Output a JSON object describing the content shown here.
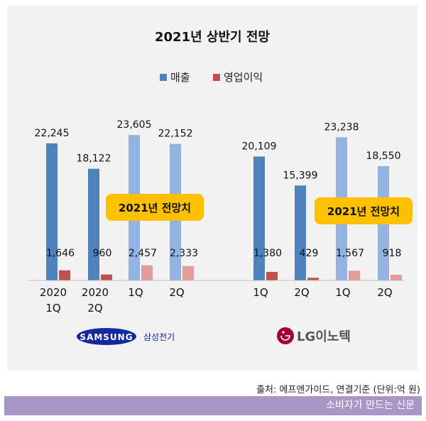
{
  "page": {
    "source": "출처: 에프엔가이드, 연결기준 (단위:억 원)",
    "footer": "소비자가 만드는 신문"
  },
  "colors": {
    "sales_actual": "#4f81bd",
    "sales_forecast": "#95b3e2",
    "op_actual": "#c0504d",
    "op_forecast": "#e39b99",
    "callout": "#ffc000",
    "samsung_blue": "#1428a0",
    "lg_red": "#a50034"
  },
  "chart_data": {
    "type": "bar",
    "title": "2021년 상반기 전망",
    "legend": [
      "매출",
      "영업이익"
    ],
    "series_names": [
      "매출",
      "영업이익"
    ],
    "ylim": [
      0,
      25000
    ],
    "groups": [
      {
        "company": "삼성전기",
        "logo_text": "SAMSUNG",
        "callout": "2021년 전망치",
        "categories": [
          {
            "label": [
              "2020",
              "1Q"
            ],
            "sales": 22245,
            "op": 1646,
            "forecast": false,
            "sales_label": "22,245",
            "op_label": "1,646"
          },
          {
            "label": [
              "2020",
              "2Q"
            ],
            "sales": 18122,
            "op": 960,
            "forecast": false,
            "sales_label": "18,122",
            "op_label": "960"
          },
          {
            "label": [
              "1Q"
            ],
            "sales": 23605,
            "op": 2457,
            "forecast": true,
            "sales_label": "23,605",
            "op_label": "2,457"
          },
          {
            "label": [
              "2Q"
            ],
            "sales": 22152,
            "op": 2333,
            "forecast": true,
            "sales_label": "22,152",
            "op_label": "2,333"
          }
        ]
      },
      {
        "company": "LG이노텍",
        "logo_text": "LG",
        "callout": "2021년 전망치",
        "categories": [
          {
            "label": [
              "1Q"
            ],
            "sales": 20109,
            "op": 1380,
            "forecast": false,
            "sales_label": "20,109",
            "op_label": "1,380"
          },
          {
            "label": [
              "2Q"
            ],
            "sales": 15399,
            "op": 429,
            "forecast": false,
            "sales_label": "15,399",
            "op_label": "429"
          },
          {
            "label": [
              "1Q"
            ],
            "sales": 23238,
            "op": 1567,
            "forecast": true,
            "sales_label": "23,238",
            "op_label": "1,567"
          },
          {
            "label": [
              "2Q"
            ],
            "sales": 18550,
            "op": 918,
            "forecast": true,
            "sales_label": "18,550",
            "op_label": "918"
          }
        ]
      }
    ]
  }
}
